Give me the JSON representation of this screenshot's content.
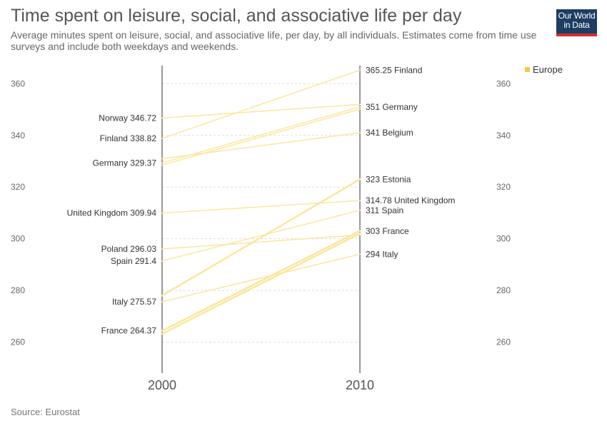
{
  "header": {
    "title": "Time spent on leisure, social, and associative life per day",
    "subtitle": "Average minutes spent on leisure, social, and associative life, per day, by all individuals. Estimates come from time use surveys and include both weekdays and weekends."
  },
  "logo": {
    "line1": "Our World",
    "line2": "in Data"
  },
  "source": "Source: Eurostat",
  "colors": {
    "line": "#fbe69e",
    "legend": "#f5c842",
    "axis": "#333333",
    "grid": "#dddddd"
  },
  "chart_data": {
    "type": "slope",
    "x": [
      "2000",
      "2010"
    ],
    "ylim": [
      248,
      367
    ],
    "yticks": [
      260,
      280,
      300,
      320,
      340,
      360
    ],
    "grid": true,
    "legend_position": "top-right",
    "legend": [
      "Europe"
    ],
    "series": [
      {
        "name": "Finland",
        "values": [
          338.82,
          365.25
        ],
        "label_start": "Finland 338.82",
        "label_end": "365.25 Finland"
      },
      {
        "name": "Norway",
        "values": [
          346.72,
          352
        ],
        "label_start": "Norway 346.72",
        "label_end": ""
      },
      {
        "name": "Germany",
        "values": [
          329.37,
          351
        ],
        "label_start": "Germany 329.37",
        "label_end": "351 Germany"
      },
      {
        "name": "Germany",
        "values": [
          328.5,
          350.2
        ],
        "label_start": "",
        "label_end": ""
      },
      {
        "name": "Belgium",
        "values": [
          331,
          341
        ],
        "label_start": "",
        "label_end": "341 Belgium"
      },
      {
        "name": "Estonia",
        "values": [
          278,
          323
        ],
        "label_start": "",
        "label_end": "323 Estonia"
      },
      {
        "name": "United Kingdom",
        "values": [
          309.94,
          314.78
        ],
        "label_start": "United Kingdom 309.94",
        "label_end": "314.78 United Kingdom"
      },
      {
        "name": "Spain",
        "values": [
          291.4,
          311
        ],
        "label_start": "Spain 291.4",
        "label_end": "311 Spain"
      },
      {
        "name": "Poland",
        "values": [
          296.03,
          301.5
        ],
        "label_start": "Poland 296.03",
        "label_end": ""
      },
      {
        "name": "France",
        "values": [
          264.37,
          303
        ],
        "label_start": "France 264.37",
        "label_end": "303 France"
      },
      {
        "name": "France",
        "values": [
          263.2,
          302
        ],
        "label_start": "",
        "label_end": ""
      },
      {
        "name": "Italy",
        "values": [
          275.57,
          294
        ],
        "label_start": "Italy 275.57",
        "label_end": "294 Italy"
      }
    ]
  }
}
